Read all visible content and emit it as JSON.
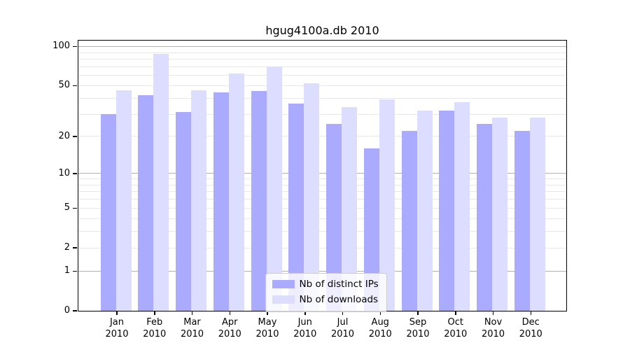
{
  "chart_data": {
    "type": "bar",
    "title": "hgug4100a.db 2010",
    "categories": [
      "Jan",
      "Feb",
      "Mar",
      "Apr",
      "May",
      "Jun",
      "Jul",
      "Aug",
      "Sep",
      "Oct",
      "Nov",
      "Dec"
    ],
    "x_tick_second_line": "2010",
    "series": [
      {
        "name": "Nb of distinct IPs",
        "color": "#aaaaff",
        "values": [
          30,
          42,
          31,
          44,
          45,
          36,
          25,
          16,
          22,
          32,
          25,
          22
        ]
      },
      {
        "name": "Nb of downloads",
        "color": "#ddddff",
        "values": [
          46,
          87,
          46,
          62,
          70,
          52,
          34,
          39,
          32,
          37,
          28,
          28
        ]
      }
    ],
    "yscale": "log1p",
    "yticks": [
      0,
      1,
      2,
      5,
      10,
      20,
      50,
      100
    ],
    "ylim": [
      0,
      111
    ],
    "grid": true,
    "legend_position": "lower center",
    "colors": {
      "major_grid": "#b0b0b0",
      "minor_grid": "#e8e8e8",
      "spine": "#000000",
      "background": "#ffffff"
    }
  }
}
